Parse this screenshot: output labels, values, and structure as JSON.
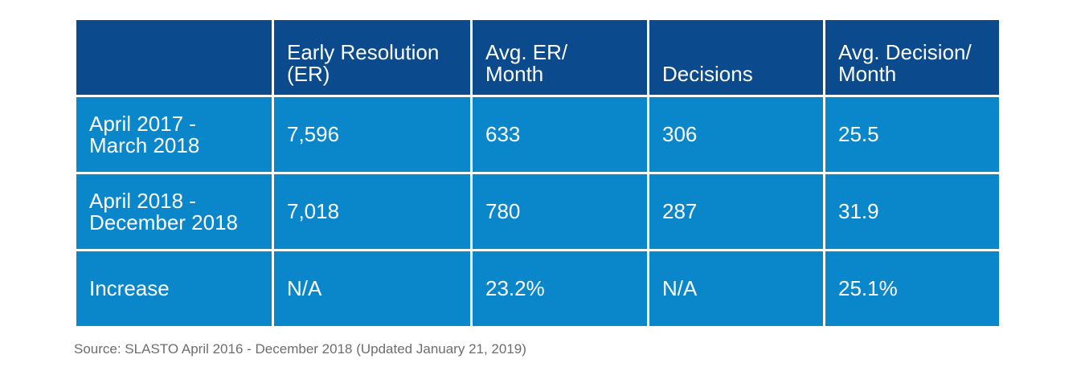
{
  "chart_data": {
    "type": "table",
    "columns": [
      "",
      "Early Resolution (ER)",
      "Avg. ER/ Month",
      "Decisions",
      "Avg. Decision/ Month"
    ],
    "header_lines": [
      [
        ""
      ],
      [
        "Early Resolution",
        "(ER)"
      ],
      [
        "Avg. ER/",
        "Month"
      ],
      [
        "Decisions"
      ],
      [
        "Avg. Decision/",
        "Month"
      ]
    ],
    "rows": [
      {
        "label_lines": [
          "April 2017 -",
          "March 2018"
        ],
        "early_resolution": "7,596",
        "avg_er_month": "633",
        "decisions": "306",
        "avg_decision_month": "25.5"
      },
      {
        "label_lines": [
          "April 2018 -",
          "December 2018"
        ],
        "early_resolution": "7,018",
        "avg_er_month": "780",
        "decisions": "287",
        "avg_decision_month": "31.9"
      },
      {
        "label_lines": [
          "Increase"
        ],
        "early_resolution": "N/A",
        "avg_er_month": "23.2%",
        "decisions": "N/A",
        "avg_decision_month": "25.1%"
      }
    ]
  },
  "source_note": "Source: SLASTO April 2016 - December 2018 (Updated January 21, 2019)",
  "colors": {
    "header_bg": "#0b4a8c",
    "body_bg": "#0a86cb",
    "grid": "#ffffff",
    "source_text": "#6d6d6d"
  }
}
